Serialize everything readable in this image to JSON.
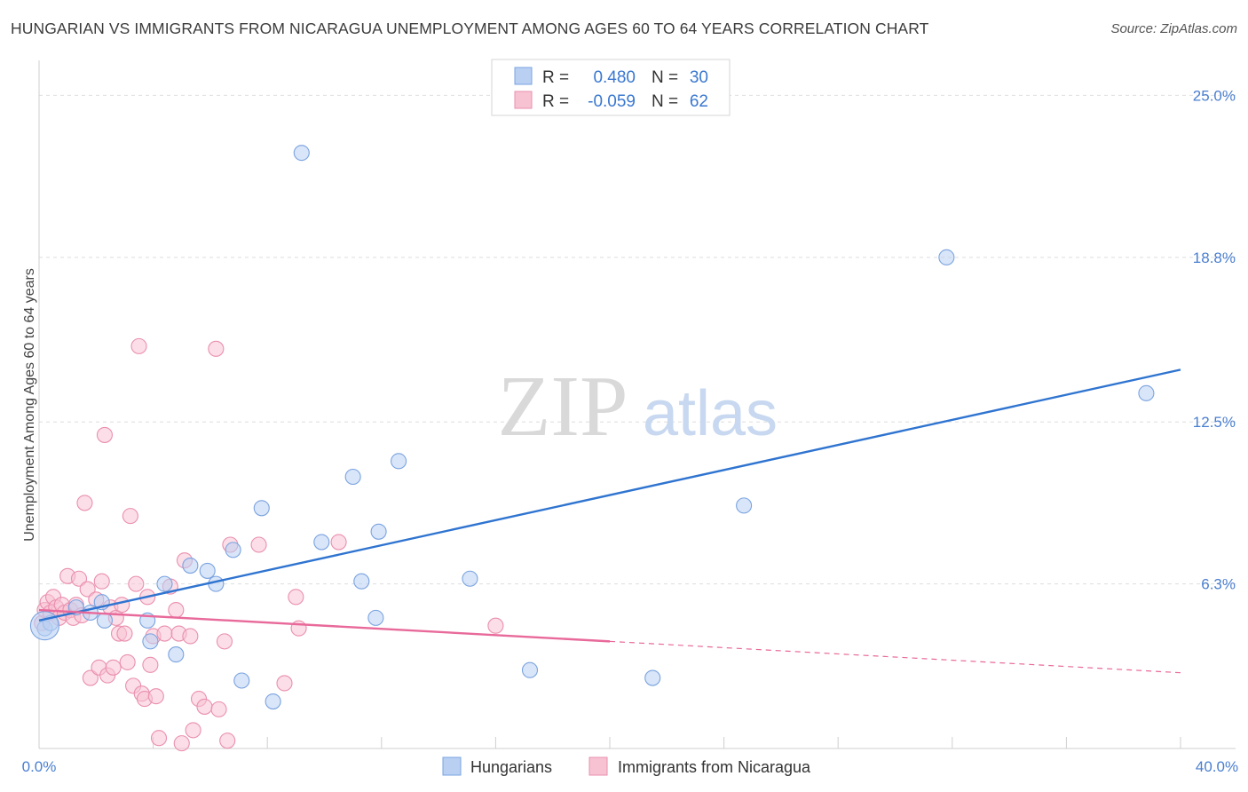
{
  "header": {
    "title": "HUNGARIAN VS IMMIGRANTS FROM NICARAGUA UNEMPLOYMENT AMONG AGES 60 TO 64 YEARS CORRELATION CHART",
    "source": "Source: ZipAtlas.com"
  },
  "watermark": {
    "zip": "ZIP",
    "atlas": "atlas"
  },
  "legend": {
    "r_label": "R =",
    "n_label": "N =",
    "rows": [
      {
        "r": "0.480",
        "n": "30"
      },
      {
        "r": "-0.059",
        "n": "62"
      }
    ]
  },
  "bottom_legend": [
    "Hungarians",
    "Immigrants from Nicaragua"
  ],
  "colors": {
    "blue": "#2f74d0",
    "blue_fill": "#b9d0f3",
    "blue_edge": "#7aa3e0",
    "pink": "#e8699a",
    "pink_fill": "#f7c3d3",
    "pink_edge": "#ea8fae",
    "grid": "#dedede",
    "axis_tick": "#4a7fd0"
  },
  "chart_data": {
    "type": "scatter",
    "title": "HUNGARIAN VS IMMIGRANTS FROM NICARAGUA UNEMPLOYMENT AMONG AGES 60 TO 64 YEARS CORRELATION CHART",
    "xlabel": "",
    "ylabel": "Unemployment Among Ages 60 to 64 years",
    "xlim": [
      0,
      40
    ],
    "ylim": [
      0,
      26
    ],
    "x_tick_labels": [
      "0.0%",
      "40.0%"
    ],
    "y_ticks": [
      6.3,
      12.5,
      18.8,
      25.0
    ],
    "y_tick_labels": [
      "6.3%",
      "12.5%",
      "18.8%",
      "25.0%"
    ],
    "grid": true,
    "series": [
      {
        "name": "Hungarians",
        "r": 0.48,
        "n": 30,
        "trend": {
          "x": [
            0,
            40
          ],
          "y": [
            4.9,
            14.5
          ],
          "dashed_x": null
        },
        "points": [
          [
            0.2,
            4.6
          ],
          [
            0.4,
            4.8
          ],
          [
            1.3,
            5.4
          ],
          [
            1.8,
            5.2
          ],
          [
            2.2,
            5.6
          ],
          [
            2.3,
            4.9
          ],
          [
            3.8,
            4.9
          ],
          [
            3.9,
            4.1
          ],
          [
            4.4,
            6.3
          ],
          [
            4.8,
            3.6
          ],
          [
            5.3,
            7.0
          ],
          [
            5.9,
            6.8
          ],
          [
            6.2,
            6.3
          ],
          [
            6.8,
            7.6
          ],
          [
            7.1,
            2.6
          ],
          [
            7.8,
            9.2
          ],
          [
            8.2,
            1.8
          ],
          [
            9.2,
            22.8
          ],
          [
            9.9,
            7.9
          ],
          [
            11.0,
            10.4
          ],
          [
            11.3,
            6.4
          ],
          [
            11.8,
            5.0
          ],
          [
            11.9,
            8.3
          ],
          [
            12.6,
            11.0
          ],
          [
            15.1,
            6.5
          ],
          [
            17.2,
            3.0
          ],
          [
            21.5,
            2.7
          ],
          [
            24.7,
            9.3
          ],
          [
            31.8,
            18.8
          ],
          [
            38.8,
            13.6
          ]
        ]
      },
      {
        "name": "Immigrants from Nicaragua",
        "r": -0.059,
        "n": 62,
        "trend": {
          "x": [
            0,
            20
          ],
          "y": [
            5.3,
            4.1
          ],
          "dashed_x": [
            20,
            40
          ],
          "dashed_y": [
            4.1,
            2.9
          ]
        },
        "points": [
          [
            0.1,
            4.8
          ],
          [
            0.2,
            5.3
          ],
          [
            0.3,
            5.6
          ],
          [
            0.4,
            5.2
          ],
          [
            0.5,
            5.8
          ],
          [
            0.6,
            5.4
          ],
          [
            0.7,
            5.0
          ],
          [
            0.8,
            5.5
          ],
          [
            0.9,
            5.2
          ],
          [
            1.0,
            6.6
          ],
          [
            1.1,
            5.3
          ],
          [
            1.2,
            5.0
          ],
          [
            1.3,
            5.5
          ],
          [
            1.4,
            6.5
          ],
          [
            1.5,
            5.1
          ],
          [
            1.6,
            9.4
          ],
          [
            1.7,
            6.1
          ],
          [
            1.8,
            2.7
          ],
          [
            2.0,
            5.7
          ],
          [
            2.1,
            3.1
          ],
          [
            2.2,
            6.4
          ],
          [
            2.3,
            12.0
          ],
          [
            2.4,
            2.8
          ],
          [
            2.5,
            5.4
          ],
          [
            2.6,
            3.1
          ],
          [
            2.7,
            5.0
          ],
          [
            2.8,
            4.4
          ],
          [
            2.9,
            5.5
          ],
          [
            3.0,
            4.4
          ],
          [
            3.1,
            3.3
          ],
          [
            3.2,
            8.9
          ],
          [
            3.3,
            2.4
          ],
          [
            3.4,
            6.3
          ],
          [
            3.5,
            15.4
          ],
          [
            3.6,
            2.1
          ],
          [
            3.7,
            1.9
          ],
          [
            3.8,
            5.8
          ],
          [
            3.9,
            3.2
          ],
          [
            4.0,
            4.3
          ],
          [
            4.1,
            2.0
          ],
          [
            4.2,
            0.4
          ],
          [
            4.4,
            4.4
          ],
          [
            4.6,
            6.2
          ],
          [
            4.8,
            5.3
          ],
          [
            4.9,
            4.4
          ],
          [
            5.0,
            0.2
          ],
          [
            5.1,
            7.2
          ],
          [
            5.3,
            4.3
          ],
          [
            5.4,
            0.7
          ],
          [
            5.6,
            1.9
          ],
          [
            5.8,
            1.6
          ],
          [
            6.2,
            15.3
          ],
          [
            6.3,
            1.5
          ],
          [
            6.5,
            4.1
          ],
          [
            6.6,
            0.3
          ],
          [
            6.7,
            7.8
          ],
          [
            7.7,
            7.8
          ],
          [
            8.6,
            2.5
          ],
          [
            9.0,
            5.8
          ],
          [
            9.1,
            4.6
          ],
          [
            10.5,
            7.9
          ],
          [
            16.0,
            4.7
          ]
        ]
      }
    ]
  }
}
